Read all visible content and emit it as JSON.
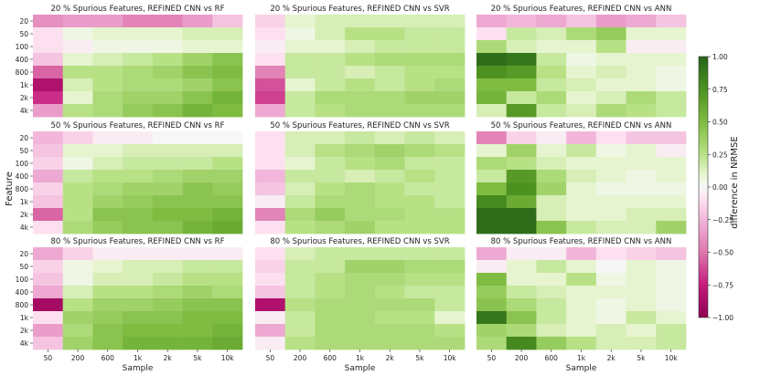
{
  "figure": {
    "shared_xlabel": "Sample",
    "shared_ylabel": "Feature",
    "colorbar_label": "difference in NRMSE",
    "colorbar_ticks": [
      "1.00",
      "0.75",
      "0.50",
      "0.25",
      "0.00",
      "−0.25",
      "−0.50",
      "−0.75",
      "−1.00"
    ],
    "colors": {
      "positive": "#276419",
      "zero": "#f7f7f7",
      "negative": "#8e0152"
    }
  },
  "chart_data": [
    {
      "type": "heatmap",
      "title": "20 % Spurious Features, REFINED CNN vs RF",
      "xlabel": "Sample",
      "ylabel": "Feature",
      "x_categories": [
        "50",
        "200",
        "600",
        "1k",
        "2k",
        "5k",
        "10k"
      ],
      "y_categories": [
        "20",
        "50",
        "100",
        "400",
        "800",
        "1k",
        "2k",
        "4k"
      ],
      "value_range": [
        -1,
        1
      ],
      "values": [
        [
          -0.4,
          -0.35,
          -0.35,
          -0.45,
          -0.45,
          -0.35,
          -0.2
        ],
        [
          -0.1,
          0.05,
          0.1,
          0.1,
          0.1,
          0.15,
          0.15
        ],
        [
          -0.1,
          -0.05,
          0.05,
          0.05,
          0.05,
          0.1,
          0.1
        ],
        [
          -0.2,
          0.1,
          0.15,
          0.2,
          0.25,
          0.35,
          0.45
        ],
        [
          -0.55,
          0.25,
          0.25,
          0.3,
          0.35,
          0.45,
          0.5
        ],
        [
          -0.85,
          0.15,
          0.25,
          0.3,
          0.3,
          0.35,
          0.45
        ],
        [
          -0.7,
          0.1,
          0.3,
          0.35,
          0.35,
          0.45,
          0.55
        ],
        [
          -0.35,
          0.25,
          0.3,
          0.4,
          0.45,
          0.55,
          0.5
        ]
      ]
    },
    {
      "type": "heatmap",
      "title": "20 % Spurious Features, REFINED CNN vs SVR",
      "xlabel": "Sample",
      "ylabel": "Feature",
      "x_categories": [
        "50",
        "200",
        "600",
        "1k",
        "2k",
        "5k",
        "10k"
      ],
      "y_categories": [
        "20",
        "50",
        "100",
        "400",
        "800",
        "1k",
        "2k",
        "4k"
      ],
      "value_range": [
        -1,
        1
      ],
      "values": [
        [
          -0.15,
          0.1,
          0.15,
          0.15,
          0.15,
          0.15,
          0.15
        ],
        [
          -0.1,
          0.05,
          0.15,
          0.25,
          0.25,
          0.2,
          0.2
        ],
        [
          -0.05,
          0.1,
          0.1,
          0.15,
          0.2,
          0.2,
          0.2
        ],
        [
          -0.1,
          0.2,
          0.2,
          0.25,
          0.3,
          0.3,
          0.3
        ],
        [
          -0.45,
          0.2,
          0.2,
          0.15,
          0.2,
          0.25,
          0.25
        ],
        [
          -0.6,
          0.1,
          0.2,
          0.25,
          0.2,
          0.25,
          0.3
        ],
        [
          -0.65,
          0.2,
          0.3,
          0.3,
          0.3,
          0.35,
          0.35
        ],
        [
          -0.3,
          0.2,
          0.25,
          0.3,
          0.3,
          0.3,
          0.3
        ]
      ]
    },
    {
      "type": "heatmap",
      "title": "20 % Spurious Features, REFINED CNN vs ANN",
      "xlabel": "Sample",
      "ylabel": "Feature",
      "x_categories": [
        "50",
        "200",
        "600",
        "1k",
        "2k",
        "5k",
        "10k"
      ],
      "y_categories": [
        "20",
        "50",
        "100",
        "400",
        "800",
        "1k",
        "2k",
        "4k"
      ],
      "value_range": [
        -1,
        1
      ],
      "values": [
        [
          -0.3,
          -0.25,
          -0.3,
          -0.2,
          -0.35,
          -0.3,
          -0.2
        ],
        [
          -0.1,
          0.2,
          0.15,
          0.3,
          0.4,
          0.1,
          0.1
        ],
        [
          0.3,
          0.15,
          0.1,
          0.1,
          0.25,
          -0.05,
          -0.05
        ],
        [
          0.95,
          0.9,
          0.2,
          0.05,
          0.1,
          0.1,
          0.1
        ],
        [
          0.75,
          0.7,
          0.25,
          0.1,
          0.15,
          0.1,
          0.05
        ],
        [
          0.5,
          0.5,
          0.2,
          0.15,
          0.1,
          0.1,
          0.05
        ],
        [
          0.55,
          0.2,
          0.3,
          0.1,
          0.15,
          0.3,
          0.2
        ],
        [
          0.15,
          0.7,
          0.2,
          0.15,
          0.3,
          0.25,
          0.2
        ]
      ]
    },
    {
      "type": "heatmap",
      "title": "50 % Spurious Features, REFINED CNN vs RF",
      "xlabel": "Sample",
      "ylabel": "Feature",
      "x_categories": [
        "50",
        "200",
        "600",
        "1k",
        "2k",
        "5k",
        "10k"
      ],
      "y_categories": [
        "20",
        "50",
        "100",
        "400",
        "800",
        "1k",
        "2k",
        "4k"
      ],
      "value_range": [
        -1,
        1
      ],
      "values": [
        [
          -0.25,
          -0.15,
          -0.05,
          -0.05,
          0.0,
          0.0,
          0.0
        ],
        [
          -0.2,
          0.1,
          0.1,
          0.15,
          0.15,
          0.15,
          0.15
        ],
        [
          -0.15,
          0.05,
          0.15,
          0.2,
          0.2,
          0.2,
          0.25
        ],
        [
          -0.3,
          0.2,
          0.25,
          0.25,
          0.3,
          0.35,
          0.35
        ],
        [
          -0.15,
          0.25,
          0.3,
          0.35,
          0.35,
          0.45,
          0.4
        ],
        [
          -0.2,
          0.25,
          0.35,
          0.4,
          0.45,
          0.45,
          0.45
        ],
        [
          -0.55,
          0.25,
          0.45,
          0.45,
          0.5,
          0.5,
          0.55
        ],
        [
          -0.1,
          0.3,
          0.4,
          0.45,
          0.45,
          0.55,
          0.6
        ]
      ]
    },
    {
      "type": "heatmap",
      "title": "50 % Spurious Features, REFINED CNN vs SVR",
      "xlabel": "Sample",
      "ylabel": "Feature",
      "x_categories": [
        "50",
        "200",
        "600",
        "1k",
        "2k",
        "5k",
        "10k"
      ],
      "y_categories": [
        "20",
        "50",
        "100",
        "400",
        "800",
        "1k",
        "2k",
        "4k"
      ],
      "value_range": [
        -1,
        1
      ],
      "values": [
        [
          -0.1,
          0.15,
          0.15,
          0.2,
          0.15,
          0.2,
          0.15
        ],
        [
          -0.1,
          0.15,
          0.25,
          0.3,
          0.35,
          0.3,
          0.25
        ],
        [
          -0.1,
          0.1,
          0.2,
          0.25,
          0.3,
          0.2,
          0.2
        ],
        [
          -0.25,
          0.2,
          0.2,
          0.15,
          0.2,
          0.25,
          0.2
        ],
        [
          -0.2,
          0.15,
          0.25,
          0.3,
          0.25,
          0.2,
          0.2
        ],
        [
          -0.05,
          0.2,
          0.3,
          0.3,
          0.25,
          0.25,
          0.2
        ],
        [
          -0.45,
          0.3,
          0.4,
          0.3,
          0.3,
          0.25,
          0.25
        ],
        [
          -0.1,
          0.25,
          0.3,
          0.35,
          0.25,
          0.25,
          0.25
        ]
      ]
    },
    {
      "type": "heatmap",
      "title": "50 % Spurious Features, REFINED CNN vs ANN",
      "xlabel": "Sample",
      "ylabel": "Feature",
      "x_categories": [
        "50",
        "200",
        "600",
        "1k",
        "2k",
        "5k",
        "10k"
      ],
      "y_categories": [
        "20",
        "50",
        "100",
        "400",
        "800",
        "1k",
        "2k",
        "4k"
      ],
      "value_range": [
        -1,
        1
      ],
      "values": [
        [
          -0.45,
          -0.15,
          -0.05,
          -0.25,
          -0.1,
          -0.2,
          -0.2
        ],
        [
          0.1,
          0.35,
          0.1,
          0.2,
          0.05,
          0.1,
          -0.05
        ],
        [
          0.3,
          0.25,
          0.15,
          0.1,
          0.1,
          0.1,
          0.1
        ],
        [
          0.2,
          0.7,
          0.3,
          0.15,
          0.1,
          0.05,
          0.1
        ],
        [
          0.5,
          0.75,
          0.35,
          0.1,
          0.05,
          0.05,
          0.05
        ],
        [
          0.8,
          0.6,
          0.15,
          0.1,
          0.1,
          0.1,
          0.1
        ],
        [
          0.95,
          0.95,
          0.15,
          0.1,
          0.1,
          0.15,
          0.15
        ],
        [
          0.95,
          0.95,
          0.45,
          0.2,
          0.15,
          0.15,
          0.35
        ]
      ]
    },
    {
      "type": "heatmap",
      "title": "80 % Spurious Features, REFINED CNN vs RF",
      "xlabel": "Sample",
      "ylabel": "Feature",
      "x_categories": [
        "50",
        "200",
        "600",
        "1k",
        "2k",
        "5k",
        "10k"
      ],
      "y_categories": [
        "20",
        "50",
        "100",
        "400",
        "800",
        "1k",
        "2k",
        "4k"
      ],
      "value_range": [
        -1,
        1
      ],
      "values": [
        [
          -0.3,
          -0.15,
          -0.05,
          -0.05,
          -0.05,
          -0.05,
          -0.05
        ],
        [
          -0.15,
          0.05,
          0.1,
          0.15,
          0.15,
          0.2,
          0.2
        ],
        [
          -0.2,
          0.05,
          0.15,
          0.15,
          0.2,
          0.25,
          0.25
        ],
        [
          -0.3,
          0.15,
          0.25,
          0.25,
          0.3,
          0.35,
          0.3
        ],
        [
          -0.9,
          0.25,
          0.35,
          0.35,
          0.4,
          0.45,
          0.45
        ],
        [
          -0.1,
          0.35,
          0.4,
          0.45,
          0.45,
          0.5,
          0.5
        ],
        [
          -0.35,
          0.3,
          0.45,
          0.5,
          0.5,
          0.5,
          0.55
        ],
        [
          -0.2,
          0.35,
          0.45,
          0.55,
          0.55,
          0.55,
          0.6
        ]
      ]
    },
    {
      "type": "heatmap",
      "title": "80 % Spurious Features, REFINED CNN vs SVR",
      "xlabel": "Sample",
      "ylabel": "Feature",
      "x_categories": [
        "50",
        "200",
        "600",
        "1k",
        "2k",
        "5k",
        "10k"
      ],
      "y_categories": [
        "20",
        "50",
        "100",
        "400",
        "800",
        "1k",
        "2k",
        "4k"
      ],
      "value_range": [
        -1,
        1
      ],
      "values": [
        [
          -0.1,
          0.15,
          0.2,
          0.2,
          0.2,
          0.2,
          0.2
        ],
        [
          -0.15,
          0.2,
          0.2,
          0.35,
          0.35,
          0.3,
          0.3
        ],
        [
          -0.1,
          0.2,
          0.25,
          0.3,
          0.3,
          0.25,
          0.25
        ],
        [
          -0.2,
          0.2,
          0.25,
          0.3,
          0.25,
          0.2,
          0.2
        ],
        [
          -0.85,
          0.25,
          0.3,
          0.3,
          0.3,
          0.3,
          0.2
        ],
        [
          -0.05,
          0.2,
          0.3,
          0.3,
          0.25,
          0.25,
          0.1
        ],
        [
          -0.3,
          0.2,
          0.3,
          0.3,
          0.3,
          0.3,
          0.25
        ],
        [
          -0.05,
          0.25,
          0.3,
          0.3,
          0.3,
          0.3,
          0.3
        ]
      ]
    },
    {
      "type": "heatmap",
      "title": "80 % Spurious Features, REFINED CNN vs ANN",
      "xlabel": "Sample",
      "ylabel": "Feature",
      "x_categories": [
        "50",
        "200",
        "600",
        "1k",
        "2k",
        "5k",
        "10k"
      ],
      "y_categories": [
        "20",
        "50",
        "100",
        "400",
        "800",
        "1k",
        "2k",
        "4k"
      ],
      "value_range": [
        -1,
        1
      ],
      "values": [
        [
          -0.3,
          -0.05,
          -0.05,
          -0.25,
          -0.1,
          -0.15,
          -0.2
        ],
        [
          -0.05,
          0.1,
          0.2,
          0.1,
          0.0,
          0.1,
          0.05
        ],
        [
          0.5,
          0.1,
          0.1,
          0.25,
          0.05,
          0.1,
          0.05
        ],
        [
          0.4,
          0.2,
          0.15,
          0.1,
          0.1,
          0.1,
          0.05
        ],
        [
          0.45,
          0.3,
          0.2,
          0.1,
          0.05,
          0.1,
          0.05
        ],
        [
          0.9,
          0.45,
          0.2,
          0.1,
          0.05,
          0.2,
          0.1
        ],
        [
          0.35,
          0.3,
          0.15,
          0.1,
          0.15,
          0.1,
          0.2
        ],
        [
          0.3,
          0.8,
          0.4,
          0.25,
          0.15,
          0.15,
          0.2
        ]
      ]
    }
  ]
}
